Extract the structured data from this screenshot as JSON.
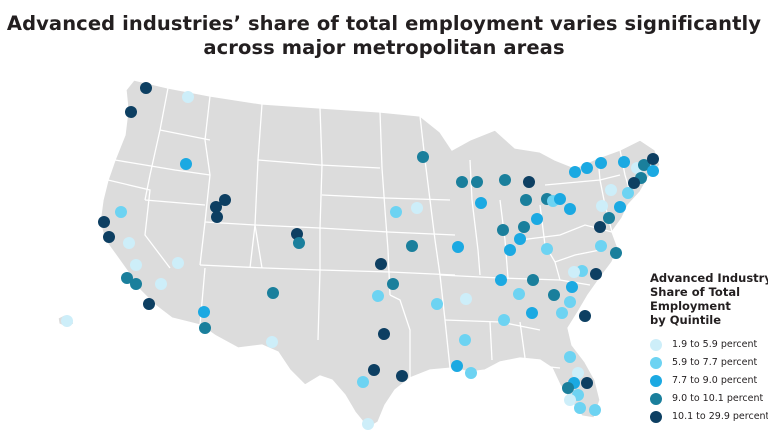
{
  "title": {
    "line1": "Advanced industries’ share of total employment varies significantly",
    "line2": "across major metropolitan areas"
  },
  "legend": {
    "title_lines": [
      "Advanced Industry",
      "Share of Total",
      "Employment",
      "by Quintile"
    ],
    "items": [
      {
        "label": "1.9 to 5.9 percent",
        "color": "#cdeef9"
      },
      {
        "label": "5.9 to 7.7 percent",
        "color": "#6dd3f2"
      },
      {
        "label": "7.7 to 9.0 percent",
        "color": "#1ba9e2"
      },
      {
        "label": "9.0 to 10.1 percent",
        "color": "#1a7f9c"
      },
      {
        "label": "10.1 to 29.9 percent",
        "color": "#0d3f62"
      }
    ]
  },
  "map": {
    "land_color": "#dcdcdc",
    "border_color": "#ffffff",
    "quintile_colors": [
      "#cdeef9",
      "#6dd3f2",
      "#1ba9e2",
      "#1a7f9c",
      "#0d3f62"
    ]
  }
}
